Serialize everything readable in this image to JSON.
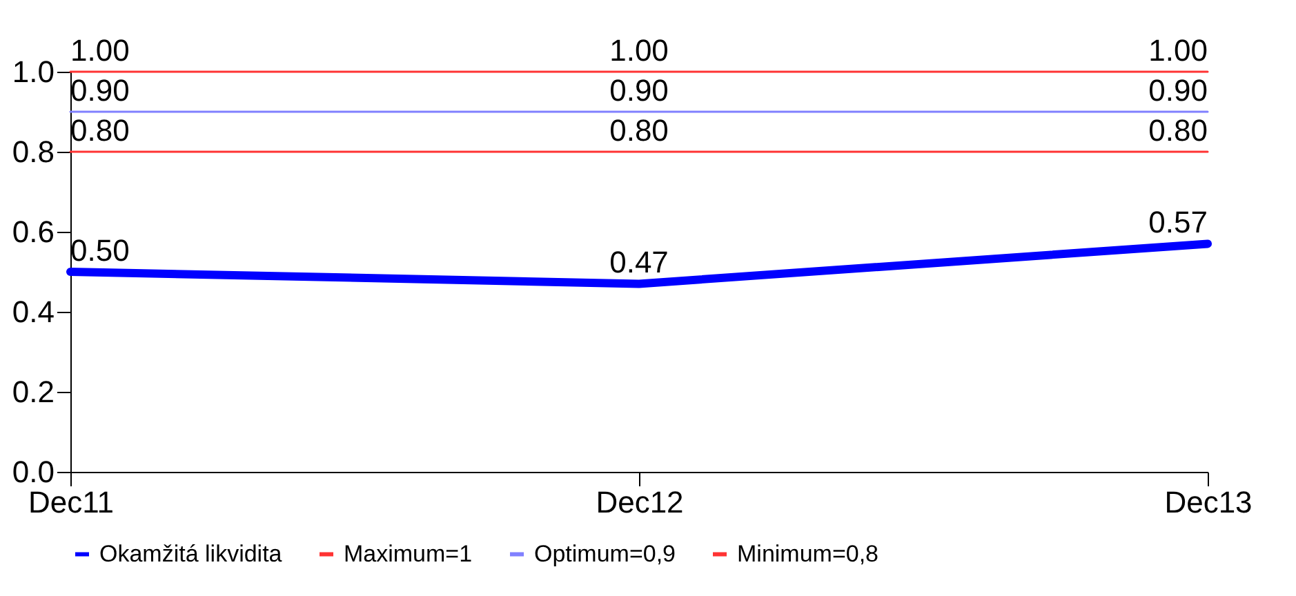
{
  "chart_data": {
    "type": "line",
    "categories": [
      "Dec11",
      "Dec12",
      "Dec13"
    ],
    "series": [
      {
        "name": "Okamžitá likvidita",
        "color": "#0000ff",
        "values": [
          0.5,
          0.47,
          0.57
        ],
        "value_labels": [
          "0.50",
          "0.47",
          "0.57"
        ]
      },
      {
        "name": "Maximum=1",
        "color": "#ff3333",
        "values": [
          1,
          1,
          1
        ],
        "value_labels": [
          "1.00",
          "1.00",
          "1.00"
        ]
      },
      {
        "name": "Optimum=0,9",
        "color": "#8080ff",
        "values": [
          0.9,
          0.9,
          0.9
        ],
        "value_labels": [
          "0.90",
          "0.90",
          "0.90"
        ]
      },
      {
        "name": "Minimum=0,8",
        "color": "#ff3333",
        "values": [
          0.8,
          0.8,
          0.8
        ],
        "value_labels": [
          "0.80",
          "0.80",
          "0.80"
        ]
      }
    ],
    "ylim": [
      0,
      1
    ],
    "yticks": [
      {
        "value": 0,
        "label": "0.0"
      },
      0.2,
      0.4,
      0.6,
      0.8,
      {
        "value": 1,
        "label": "1.0"
      }
    ],
    "grid": false,
    "legend": "bottom",
    "marker": "none"
  }
}
